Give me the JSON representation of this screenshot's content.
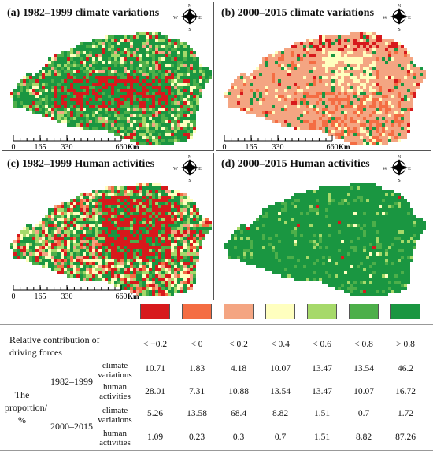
{
  "panels": [
    {
      "title": "(a) 1982–1999 climate variations",
      "scheme": "a"
    },
    {
      "title": "(b) 2000–2015 climate variations",
      "scheme": "b"
    },
    {
      "title": "(c) 1982–1999 Human activities",
      "scheme": "c"
    },
    {
      "title": "(d) 2000–2015 Human activities",
      "scheme": "d"
    }
  ],
  "compass": {
    "n": "N",
    "s": "S",
    "e": "E",
    "w": "W"
  },
  "scale": {
    "ticks": [
      "0",
      "165",
      "330",
      "660"
    ],
    "unit": "Km"
  },
  "legend": {
    "colors": [
      "#d7191c",
      "#f46d43",
      "#f4a582",
      "#ffffbf",
      "#a6d96a",
      "#4daf4a",
      "#1a9641"
    ],
    "header": "Relative contribution of driving forces",
    "classes": [
      "< −0.2",
      "< 0",
      "< 0.2",
      "< 0.4",
      "< 0.6",
      "< 0.8",
      "> 0.8"
    ]
  },
  "table": {
    "row_group_label": "The proportion/ %",
    "periods": [
      "1982–1999",
      "2000–2015"
    ],
    "rows": [
      {
        "period": "1982–1999",
        "driver": "climate variations",
        "values": [
          "10.71",
          "1.83",
          "4.18",
          "10.07",
          "13.47",
          "13.54",
          "46.2"
        ]
      },
      {
        "period": "1982–1999",
        "driver": "human activities",
        "values": [
          "28.01",
          "7.31",
          "10.88",
          "13.54",
          "13.47",
          "10.07",
          "16.72"
        ]
      },
      {
        "period": "2000–2015",
        "driver": "climate variations",
        "values": [
          "5.26",
          "13.58",
          "68.4",
          "8.82",
          "1.51",
          "0.7",
          "1.72"
        ]
      },
      {
        "period": "2000–2015",
        "driver": "human activities",
        "values": [
          "1.09",
          "0.23",
          "0.3",
          "0.7",
          "1.51",
          "8.82",
          "87.26"
        ]
      }
    ]
  }
}
